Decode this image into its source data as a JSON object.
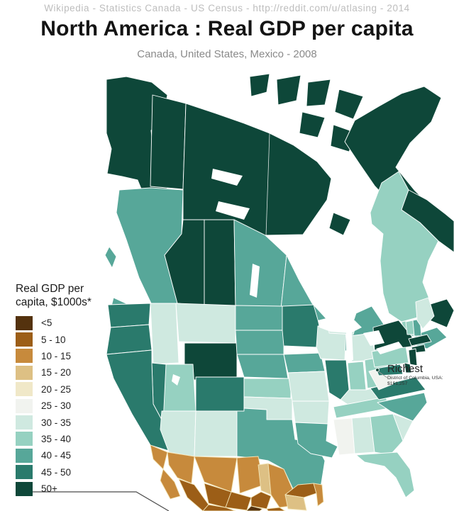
{
  "header": {
    "attribution": "Wikipedia  -  Statistics Canada  -  US Census  -  http://reddit.com/u/atlasing  -  2014",
    "title": "North America : Real GDP per capita",
    "subtitle": "Canada, United States, Mexico - 2008"
  },
  "legend": {
    "title_line1": "Real GDP per",
    "title_line2": "capita, $1000s*",
    "items": [
      {
        "label": "<5",
        "color": "#54320e"
      },
      {
        "label": "5 - 10",
        "color": "#9c5e17"
      },
      {
        "label": "10 - 15",
        "color": "#c78a3c"
      },
      {
        "label": "15 - 20",
        "color": "#ddc084"
      },
      {
        "label": "20 - 25",
        "color": "#f0e8c8"
      },
      {
        "label": "25 - 30",
        "color": "#f1f3ef"
      },
      {
        "label": "30 - 35",
        "color": "#cfe9e0"
      },
      {
        "label": "35 - 40",
        "color": "#96d1c1"
      },
      {
        "label": "40 - 45",
        "color": "#57a799"
      },
      {
        "label": "45 - 50",
        "color": "#2a7a6c"
      },
      {
        "label": "50+",
        "color": "#0e4739"
      }
    ]
  },
  "annotations": {
    "richest": {
      "title": "Richest",
      "line1": "District of Columbia, USA:",
      "line2": "$151,257"
    }
  },
  "chart_data": {
    "type": "choropleth",
    "title": "North America : Real GDP per capita",
    "subtitle": "Canada, United States, Mexico - 2008",
    "legend_title": "Real GDP per capita, $1000s*",
    "palette": {
      "<5": "#54320e",
      "5 - 10": "#9c5e17",
      "10 - 15": "#c78a3c",
      "15 - 20": "#ddc084",
      "20 - 25": "#f0e8c8",
      "25 - 30": "#f1f3ef",
      "30 - 35": "#cfe9e0",
      "35 - 40": "#96d1c1",
      "40 - 45": "#57a799",
      "45 - 50": "#2a7a6c",
      "50+": "#0e4739"
    },
    "regions": [
      {
        "id": "alaska",
        "name": "Alaska",
        "country": "USA",
        "category": "50+"
      },
      {
        "id": "yukon",
        "name": "Yukon",
        "country": "Canada",
        "category": "50+"
      },
      {
        "id": "northwest-territories",
        "name": "Northwest Territories",
        "country": "Canada",
        "category": "50+"
      },
      {
        "id": "nunavut",
        "name": "Nunavut",
        "country": "Canada",
        "category": "50+"
      },
      {
        "id": "british-columbia",
        "name": "British Columbia",
        "country": "Canada",
        "category": "40 - 45"
      },
      {
        "id": "alberta",
        "name": "Alberta",
        "country": "Canada",
        "category": "50+"
      },
      {
        "id": "saskatchewan",
        "name": "Saskatchewan",
        "country": "Canada",
        "category": "50+"
      },
      {
        "id": "manitoba",
        "name": "Manitoba",
        "country": "Canada",
        "category": "40 - 45"
      },
      {
        "id": "ontario",
        "name": "Ontario",
        "country": "Canada",
        "category": "40 - 45"
      },
      {
        "id": "quebec",
        "name": "Quebec",
        "country": "Canada",
        "category": "35 - 40"
      },
      {
        "id": "newfoundland-labrador",
        "name": "Newfoundland and Labrador",
        "country": "Canada",
        "category": "50+"
      },
      {
        "id": "new-brunswick",
        "name": "New Brunswick",
        "country": "Canada",
        "category": "35 - 40"
      },
      {
        "id": "nova-scotia",
        "name": "Nova Scotia",
        "country": "Canada",
        "category": "40 - 45"
      },
      {
        "id": "washington",
        "name": "Washington",
        "country": "USA",
        "category": "45 - 50"
      },
      {
        "id": "oregon",
        "name": "Oregon",
        "country": "USA",
        "category": "45 - 50"
      },
      {
        "id": "california",
        "name": "California",
        "country": "USA",
        "category": "45 - 50"
      },
      {
        "id": "nevada",
        "name": "Nevada",
        "country": "USA",
        "category": "45 - 50"
      },
      {
        "id": "idaho",
        "name": "Idaho",
        "country": "USA",
        "category": "30 - 35"
      },
      {
        "id": "montana",
        "name": "Montana",
        "country": "USA",
        "category": "30 - 35"
      },
      {
        "id": "wyoming",
        "name": "Wyoming",
        "country": "USA",
        "category": "50+"
      },
      {
        "id": "utah",
        "name": "Utah",
        "country": "USA",
        "category": "35 - 40"
      },
      {
        "id": "colorado",
        "name": "Colorado",
        "country": "USA",
        "category": "45 - 50"
      },
      {
        "id": "arizona",
        "name": "Arizona",
        "country": "USA",
        "category": "30 - 35"
      },
      {
        "id": "new-mexico",
        "name": "New Mexico",
        "country": "USA",
        "category": "30 - 35"
      },
      {
        "id": "north-dakota",
        "name": "North Dakota",
        "country": "USA",
        "category": "40 - 45"
      },
      {
        "id": "south-dakota",
        "name": "South Dakota",
        "country": "USA",
        "category": "40 - 45"
      },
      {
        "id": "nebraska",
        "name": "Nebraska",
        "country": "USA",
        "category": "40 - 45"
      },
      {
        "id": "kansas",
        "name": "Kansas",
        "country": "USA",
        "category": "35 - 40"
      },
      {
        "id": "oklahoma",
        "name": "Oklahoma",
        "country": "USA",
        "category": "30 - 35"
      },
      {
        "id": "texas",
        "name": "Texas",
        "country": "USA",
        "category": "40 - 45"
      },
      {
        "id": "minnesota",
        "name": "Minnesota",
        "country": "USA",
        "category": "45 - 50"
      },
      {
        "id": "iowa",
        "name": "Iowa",
        "country": "USA",
        "category": "40 - 45"
      },
      {
        "id": "missouri",
        "name": "Missouri",
        "country": "USA",
        "category": "30 - 35"
      },
      {
        "id": "arkansas",
        "name": "Arkansas",
        "country": "USA",
        "category": "30 - 35"
      },
      {
        "id": "louisiana",
        "name": "Louisiana",
        "country": "USA",
        "category": "40 - 45"
      },
      {
        "id": "wisconsin",
        "name": "Wisconsin",
        "country": "USA",
        "category": "30 - 35"
      },
      {
        "id": "illinois",
        "name": "Illinois",
        "country": "USA",
        "category": "45 - 50"
      },
      {
        "id": "michigan",
        "name": "Michigan",
        "country": "USA",
        "category": "30 - 35"
      },
      {
        "id": "indiana",
        "name": "Indiana",
        "country": "USA",
        "category": "35 - 40"
      },
      {
        "id": "ohio",
        "name": "Ohio",
        "country": "USA",
        "category": "35 - 40"
      },
      {
        "id": "kentucky",
        "name": "Kentucky",
        "country": "USA",
        "category": "30 - 35"
      },
      {
        "id": "tennessee",
        "name": "Tennessee",
        "country": "USA",
        "category": "35 - 40"
      },
      {
        "id": "mississippi",
        "name": "Mississippi",
        "country": "USA",
        "category": "25 - 30"
      },
      {
        "id": "alabama",
        "name": "Alabama",
        "country": "USA",
        "category": "30 - 35"
      },
      {
        "id": "georgia",
        "name": "Georgia",
        "country": "USA",
        "category": "35 - 40"
      },
      {
        "id": "florida",
        "name": "Florida",
        "country": "USA",
        "category": "35 - 40"
      },
      {
        "id": "south-carolina",
        "name": "South Carolina",
        "country": "USA",
        "category": "30 - 35"
      },
      {
        "id": "north-carolina",
        "name": "North Carolina",
        "country": "USA",
        "category": "40 - 45"
      },
      {
        "id": "virginia",
        "name": "Virginia",
        "country": "USA",
        "category": "45 - 50"
      },
      {
        "id": "west-virginia",
        "name": "West Virginia",
        "country": "USA",
        "category": "25 - 30"
      },
      {
        "id": "pennsylvania",
        "name": "Pennsylvania",
        "country": "USA",
        "category": "35 - 40"
      },
      {
        "id": "new-york",
        "name": "New York",
        "country": "USA",
        "category": "50+"
      },
      {
        "id": "vermont",
        "name": "Vermont",
        "country": "USA",
        "category": "35 - 40"
      },
      {
        "id": "new-hampshire",
        "name": "New Hampshire",
        "country": "USA",
        "category": "40 - 45"
      },
      {
        "id": "maine",
        "name": "Maine",
        "country": "USA",
        "category": "30 - 35"
      },
      {
        "id": "massachusetts",
        "name": "Massachusetts",
        "country": "USA",
        "category": "50+"
      },
      {
        "id": "connecticut-rhode-island",
        "name": "Connecticut / Rhode Island",
        "country": "USA",
        "category": "50+"
      },
      {
        "id": "new-jersey",
        "name": "New Jersey",
        "country": "USA",
        "category": "50+"
      },
      {
        "id": "maryland",
        "name": "Maryland",
        "country": "USA",
        "category": "45 - 50"
      },
      {
        "id": "delaware",
        "name": "Delaware",
        "country": "USA",
        "category": "50+"
      },
      {
        "id": "district-of-columbia",
        "name": "District of Columbia",
        "country": "USA",
        "category": "50+"
      },
      {
        "id": "baja-california",
        "name": "Baja California",
        "country": "Mexico",
        "category": "10 - 15"
      },
      {
        "id": "baja-california-sur",
        "name": "Baja California Sur",
        "country": "Mexico",
        "category": "10 - 15"
      },
      {
        "id": "sonora",
        "name": "Sonora",
        "country": "Mexico",
        "category": "10 - 15"
      },
      {
        "id": "chihuahua",
        "name": "Chihuahua",
        "country": "Mexico",
        "category": "10 - 15"
      },
      {
        "id": "coahuila",
        "name": "Coahuila",
        "country": "Mexico",
        "category": "10 - 15"
      },
      {
        "id": "nuevo-leon",
        "name": "Nuevo Leon",
        "country": "Mexico",
        "category": "15 - 20"
      },
      {
        "id": "tamaulipas",
        "name": "Tamaulipas",
        "country": "Mexico",
        "category": "10 - 15"
      },
      {
        "id": "sinaloa",
        "name": "Sinaloa",
        "country": "Mexico",
        "category": "5 - 10"
      },
      {
        "id": "durango",
        "name": "Durango",
        "country": "Mexico",
        "category": "5 - 10"
      },
      {
        "id": "zacatecas",
        "name": "Zacatecas",
        "country": "Mexico",
        "category": "5 - 10"
      },
      {
        "id": "san-luis-potosi",
        "name": "San Luis Potosi",
        "country": "Mexico",
        "category": "5 - 10"
      },
      {
        "id": "jalisco-nayarit",
        "name": "Jalisco / Nayarit",
        "country": "Mexico",
        "category": "5 - 10"
      },
      {
        "id": "central-mexico",
        "name": "Central Mexico",
        "country": "Mexico",
        "category": "<5"
      },
      {
        "id": "veracruz",
        "name": "Veracruz",
        "country": "Mexico",
        "category": "5 - 10"
      },
      {
        "id": "yucatan",
        "name": "Yucatan",
        "country": "Mexico",
        "category": "5 - 10"
      },
      {
        "id": "quintana-roo",
        "name": "Quintana Roo",
        "country": "Mexico",
        "category": "10 - 15"
      },
      {
        "id": "campeche",
        "name": "Campeche",
        "country": "Mexico",
        "category": "15 - 20"
      }
    ]
  }
}
